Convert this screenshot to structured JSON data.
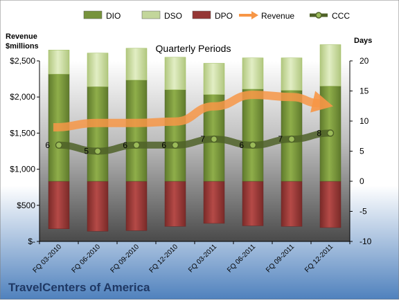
{
  "company": "TravelCenters of America",
  "chart_data": {
    "type": "bar",
    "title": "Quarterly Periods",
    "categories": [
      "FQ 03-2010",
      "FQ 06-2010",
      "FQ 09-2010",
      "FQ 12-2010",
      "FQ 03-2011",
      "FQ 06-2011",
      "FQ 09-2011",
      "FQ 12-2011"
    ],
    "left_axis": {
      "label_line1": "Revenue",
      "label_line2": "$millions",
      "range": [
        0,
        2500
      ],
      "ticks": [
        0,
        500,
        1000,
        1500,
        2000,
        2500
      ],
      "tick_labels": [
        "$-",
        "$500",
        "$1,000",
        "$1,500",
        "$2,000",
        "$2,500"
      ]
    },
    "right_axis": {
      "label": "Days",
      "range": [
        -10,
        20
      ],
      "ticks": [
        -10,
        -5,
        0,
        5,
        10,
        15,
        20
      ],
      "tick_labels": [
        "-10",
        "-5",
        "0",
        "5",
        "10",
        "15",
        "20"
      ]
    },
    "legend": {
      "placement": "top",
      "entries": [
        {
          "name": "DIO",
          "kind": "box",
          "color": "#77933c"
        },
        {
          "name": "DSO",
          "kind": "box",
          "color": "#c3d69b"
        },
        {
          "name": "DPO",
          "kind": "box",
          "color": "#953735"
        },
        {
          "name": "Revenue",
          "kind": "arrow",
          "color": "#f79646"
        },
        {
          "name": "CCC",
          "kind": "line-marker",
          "color": "#4f6228"
        }
      ]
    },
    "series": [
      {
        "name": "DIO",
        "axis": "right",
        "values": [
          17.8,
          15.7,
          16.8,
          15.2,
          14.4,
          15.3,
          15.1,
          15.8
        ]
      },
      {
        "name": "DSO",
        "axis": "right",
        "values": [
          4.0,
          5.6,
          5.3,
          5.4,
          5.2,
          5.2,
          5.4,
          6.9
        ]
      },
      {
        "name": "DPO",
        "axis": "right",
        "values": [
          -7.9,
          -8.3,
          -8.2,
          -7.5,
          -7.0,
          -7.4,
          -7.5,
          -7.7
        ]
      },
      {
        "name": "Revenue",
        "axis": "left",
        "values": [
          1580,
          1640,
          1640,
          1660,
          1870,
          2030,
          2000,
          1880
        ]
      },
      {
        "name": "CCC",
        "axis": "right",
        "values": [
          6,
          5,
          6,
          6,
          7,
          6,
          7,
          8
        ],
        "data_labels": [
          "6",
          "5",
          "6",
          "6",
          "7",
          "6",
          "7",
          "8"
        ]
      }
    ],
    "grid": false,
    "colors": {
      "dio": "#77933c",
      "dso": "#c3d69b",
      "dpo": "#953735",
      "revenue": "#f79646",
      "ccc": "#4f6228",
      "plot_top": "#ffffff",
      "plot_bottom": "#4a4a4a",
      "background_top": "#ffffff",
      "background_bottom": "#4f81bd",
      "company_title": "#1f3864"
    }
  }
}
